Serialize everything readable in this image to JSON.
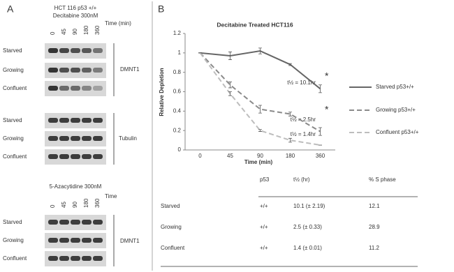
{
  "panel_a": {
    "label": "A",
    "header": [
      "HCT 116 p53 +/+",
      "Decitabine 300nM"
    ],
    "times": [
      "0",
      "45",
      "90",
      "180",
      "360"
    ],
    "time_label": "Time (min)",
    "blots": [
      {
        "rows": [
          "Starved",
          "Growing",
          "Confluent"
        ],
        "protein": "DMNT1"
      },
      {
        "rows": [
          "Starved",
          "Growing",
          "Confluent"
        ],
        "protein": "Tubulin"
      }
    ],
    "section2": {
      "header": "5-Azacytidine 300nM",
      "times": [
        "0",
        "45",
        "90",
        "180",
        "360"
      ],
      "time_label": "Time",
      "rows": [
        "Starved",
        "Growing",
        "Confluent"
      ],
      "protein": "DMNT1"
    }
  },
  "panel_b_label": "B",
  "chart_data": {
    "type": "line",
    "title": "Decitabine Treated HCT116",
    "x_label": "Time (min)",
    "y_label": "Relative Depletion",
    "categories": [
      "0",
      "45",
      "90",
      "180",
      "360"
    ],
    "ylim": [
      0,
      1.2
    ],
    "yticks": [
      0,
      0.2,
      0.4,
      0.6,
      0.8,
      1,
      1.2
    ],
    "grid": false,
    "legend": "right",
    "series": [
      {
        "name": "Starved p53+/+",
        "color": "#666666",
        "line_style": "solid",
        "values": [
          1,
          0.97,
          1.02,
          0.88,
          0.63
        ],
        "errors": [
          0,
          0.04,
          0.03,
          0.01,
          0.04
        ]
      },
      {
        "name": "Growing p53+/+",
        "color": "#8a8a8a",
        "line_style": "dashed",
        "values": [
          1,
          0.67,
          0.42,
          0.37,
          0.19
        ],
        "errors": [
          0,
          0.03,
          0.04,
          0.02,
          0.04
        ]
      },
      {
        "name": "Confluent p53+/+",
        "color": "#bdbdbd",
        "line_style": "dashed",
        "values": [
          1,
          0.58,
          0.2,
          0.1,
          0.05
        ],
        "errors": [
          0,
          0.02,
          0.01,
          0.02,
          0
        ]
      }
    ],
    "annotations": [
      "t½ = 10.1hr",
      "t½ = 2.5hr",
      "t½ = 1.4hr",
      "*",
      "*"
    ]
  },
  "table": {
    "header": [
      "p53",
      "t½ (hr)",
      "% S phase"
    ],
    "rows": [
      [
        "Starved",
        "+/+",
        "10.1 (± 2.19)",
        "12.1"
      ],
      [
        "Growing",
        "+/+",
        "2.5 (± 0.33)",
        "28.9"
      ],
      [
        "Confluent",
        "+/+",
        "1.4 (± 0.01)",
        "11.2"
      ]
    ]
  }
}
